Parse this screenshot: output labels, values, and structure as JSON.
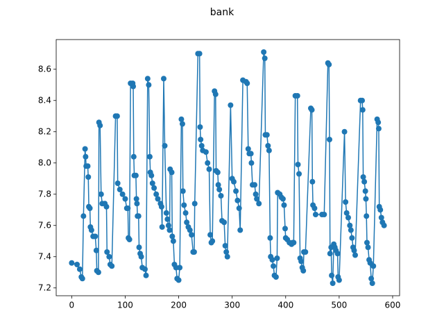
{
  "chart_data": {
    "type": "line",
    "title": "bank",
    "color": "#1f77b4",
    "marker": "circle",
    "xlim": [
      -29,
      613
    ],
    "ylim": [
      7.15,
      8.79
    ],
    "xticks": [
      0,
      100,
      200,
      300,
      400,
      500,
      600
    ],
    "yticks": [
      7.2,
      7.4,
      7.6,
      7.8,
      {
        "value": 8,
        "label": "8.0"
      },
      8.2,
      8.4,
      8.6
    ],
    "x": [
      0,
      10,
      15,
      18,
      20,
      22,
      25,
      26,
      27,
      30,
      31,
      32,
      34,
      35,
      37,
      40,
      44,
      46,
      47,
      50,
      51,
      53,
      55,
      57,
      62,
      65,
      66,
      70,
      72,
      75,
      82,
      85,
      86,
      90,
      95,
      100,
      103,
      105,
      106,
      108,
      110,
      114,
      115,
      116,
      117,
      120,
      121,
      122,
      123,
      125,
      126,
      128,
      130,
      132,
      137,
      139,
      142,
      144,
      146,
      147,
      149,
      151,
      154,
      158,
      161,
      166,
      168,
      169,
      172,
      174,
      177,
      179,
      181,
      183,
      184,
      187,
      188,
      190,
      192,
      195,
      197,
      200,
      202,
      205,
      207,
      208,
      210,
      213,
      215,
      218,
      221,
      224,
      227,
      229,
      230,
      236,
      239,
      240,
      241,
      243,
      245,
      251,
      254,
      257,
      259,
      261,
      263,
      267,
      269,
      270,
      273,
      274,
      276,
      279,
      281,
      285,
      287,
      289,
      291,
      297,
      300,
      303,
      307,
      310,
      313,
      315,
      320,
      326,
      328,
      330,
      332,
      335,
      336,
      338,
      342,
      344,
      346,
      350,
      359,
      361,
      362,
      365,
      367,
      369,
      371,
      372,
      375,
      377,
      379,
      382,
      384,
      385,
      389,
      392,
      395,
      397,
      399,
      400,
      403,
      407,
      411,
      413,
      415,
      418,
      422,
      423,
      425,
      427,
      429,
      431,
      433,
      434,
      437,
      447,
      449,
      450,
      451,
      454,
      456,
      468,
      472,
      479,
      481,
      482,
      483,
      485,
      486,
      488,
      490,
      492,
      494,
      497,
      498,
      500,
      510,
      512,
      514,
      517,
      520,
      522,
      524,
      526,
      528,
      530,
      540,
      543,
      544,
      545,
      547,
      549,
      550,
      551,
      552,
      554,
      556,
      558,
      560,
      562,
      564,
      571,
      573,
      574,
      575,
      577,
      579,
      581,
      584
    ],
    "values": [
      7.36,
      7.35,
      7.32,
      7.27,
      7.26,
      7.66,
      8.09,
      8.04,
      7.98,
      7.98,
      7.91,
      7.72,
      7.71,
      7.59,
      7.57,
      7.53,
      7.53,
      7.44,
      7.31,
      7.3,
      8.26,
      8.24,
      7.8,
      7.74,
      7.74,
      7.72,
      7.43,
      7.4,
      7.35,
      7.34,
      8.3,
      8.3,
      7.87,
      7.83,
      7.8,
      7.77,
      7.71,
      7.71,
      7.52,
      7.51,
      8.51,
      8.51,
      8.49,
      8.04,
      7.92,
      7.92,
      7.77,
      7.74,
      7.66,
      7.66,
      7.46,
      7.42,
      7.4,
      7.33,
      7.32,
      7.28,
      8.54,
      8.5,
      8.04,
      7.94,
      7.92,
      7.87,
      7.84,
      7.8,
      7.77,
      7.74,
      7.72,
      7.59,
      8.54,
      8.11,
      7.68,
      7.64,
      7.6,
      7.57,
      7.96,
      7.94,
      7.53,
      7.5,
      7.35,
      7.33,
      7.26,
      7.25,
      7.33,
      8.28,
      8.25,
      7.82,
      7.73,
      7.68,
      7.62,
      7.59,
      7.57,
      7.54,
      7.43,
      7.43,
      7.74,
      8.7,
      8.7,
      8.23,
      8.15,
      8.11,
      8.08,
      8.07,
      8.0,
      7.96,
      7.54,
      7.49,
      7.5,
      8.46,
      8.44,
      7.95,
      7.94,
      7.86,
      7.83,
      7.79,
      7.63,
      7.62,
      7.47,
      7.43,
      7.4,
      8.37,
      7.9,
      7.88,
      7.82,
      7.76,
      7.71,
      7.57,
      8.53,
      8.52,
      8.51,
      8.09,
      8.06,
      8.06,
      8.0,
      7.86,
      7.86,
      7.8,
      7.77,
      7.74,
      8.71,
      8.67,
      8.18,
      8.18,
      8.11,
      8.08,
      7.52,
      7.4,
      7.38,
      7.34,
      7.28,
      7.27,
      7.39,
      7.81,
      7.8,
      7.78,
      7.77,
      7.73,
      7.58,
      7.52,
      7.51,
      7.49,
      7.48,
      7.49,
      7.49,
      8.43,
      8.43,
      7.99,
      7.93,
      7.39,
      7.37,
      7.33,
      7.31,
      7.43,
      7.43,
      8.35,
      8.34,
      7.88,
      7.73,
      7.71,
      7.67,
      7.67,
      7.67,
      8.64,
      8.63,
      8.15,
      7.42,
      7.46,
      7.28,
      7.23,
      7.48,
      7.46,
      7.44,
      7.42,
      7.27,
      7.25,
      8.2,
      7.75,
      7.68,
      7.65,
      7.6,
      7.57,
      7.52,
      7.46,
      7.44,
      7.41,
      8.4,
      8.4,
      8.34,
      7.91,
      7.88,
      7.82,
      7.77,
      7.66,
      7.49,
      7.46,
      7.38,
      7.36,
      7.26,
      7.23,
      7.34,
      8.28,
      8.26,
      8.22,
      7.72,
      7.7,
      7.65,
      7.62,
      7.6
    ]
  }
}
